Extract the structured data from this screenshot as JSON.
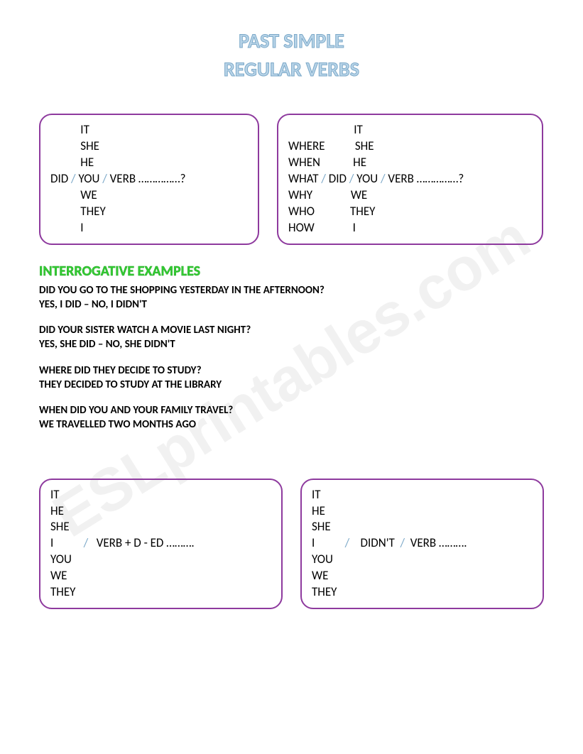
{
  "watermark": "ESLprintables.com",
  "title_line1": "PAST SIMPLE",
  "title_line2": "REGULAR VERBS",
  "box1": {
    "pronouns": [
      "IT",
      "SHE",
      "HE",
      "YOU",
      "WE",
      "THEY",
      "I"
    ],
    "aux": "DID",
    "verb": "VERB",
    "dots": "……………?"
  },
  "box2": {
    "wh": [
      "WHERE",
      "WHEN",
      "WHAT",
      "WHY",
      "WHO",
      "HOW"
    ],
    "pronouns": [
      "IT",
      "SHE",
      "HE",
      "YOU",
      "WE",
      "THEY",
      "I"
    ],
    "aux": "DID",
    "verb": "VERB",
    "dots": "……………?"
  },
  "section_title": "INTERROGATIVE EXAMPLES",
  "examples": [
    {
      "q": "DID YOU GO TO THE SHOPPING YESTERDAY IN THE AFTERNOON?",
      "a": "YES, I DID – NO, I DIDN'T"
    },
    {
      "q": "DID YOUR SISTER WATCH A MOVIE LAST NIGHT?",
      "a": "YES, SHE DID – NO, SHE DIDN'T"
    },
    {
      "q": "WHERE DID THEY DECIDE TO STUDY?",
      "a": "THEY DECIDED TO STUDY AT THE LIBRARY"
    },
    {
      "q": "WHEN DID YOU AND YOUR FAMILY TRAVEL?",
      "a": "WE TRAVELLED TWO MONTHS AGO"
    }
  ],
  "box3": {
    "pronouns": [
      "IT",
      "HE",
      "SHE",
      "I",
      "YOU",
      "WE",
      "THEY"
    ],
    "verb": "VERB + D - ED",
    "dots": "………."
  },
  "box4": {
    "pronouns": [
      "IT",
      "HE",
      "SHE",
      "I",
      "YOU",
      "WE",
      "THEY"
    ],
    "aux": "DIDN'T",
    "verb": "VERB",
    "dots": "………."
  },
  "colors": {
    "title_fill": "#b8d4e8",
    "title_stroke": "#7ba8c8",
    "box_border": "#8e3a9e",
    "section_green": "#33cc33",
    "slash": "#7ba8c8",
    "watermark": "#e8e8e8"
  }
}
